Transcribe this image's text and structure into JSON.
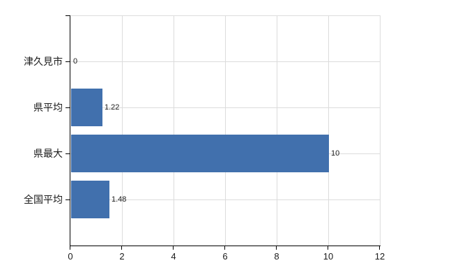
{
  "chart_data": {
    "type": "bar",
    "orientation": "horizontal",
    "title": "",
    "xlabel": "",
    "ylabel": "",
    "categories": [
      "津久見市",
      "県平均",
      "県最大",
      "全国平均"
    ],
    "values": [
      0,
      1.22,
      10,
      1.48
    ],
    "value_labels": [
      "0",
      "1.22",
      "10",
      "1.48"
    ],
    "xlim": [
      0,
      12
    ],
    "x_ticks": [
      0,
      2,
      4,
      6,
      8,
      10,
      12
    ],
    "x_tick_labels": [
      "0",
      "2",
      "4",
      "6",
      "8",
      "10",
      "12"
    ],
    "grid": true,
    "legend": false,
    "bar_color": "#4170ad",
    "grid_color": "#dcdcdc",
    "axis_color": "#000000",
    "text_color": "#1a1a1a",
    "background_color": "#ffffff"
  }
}
